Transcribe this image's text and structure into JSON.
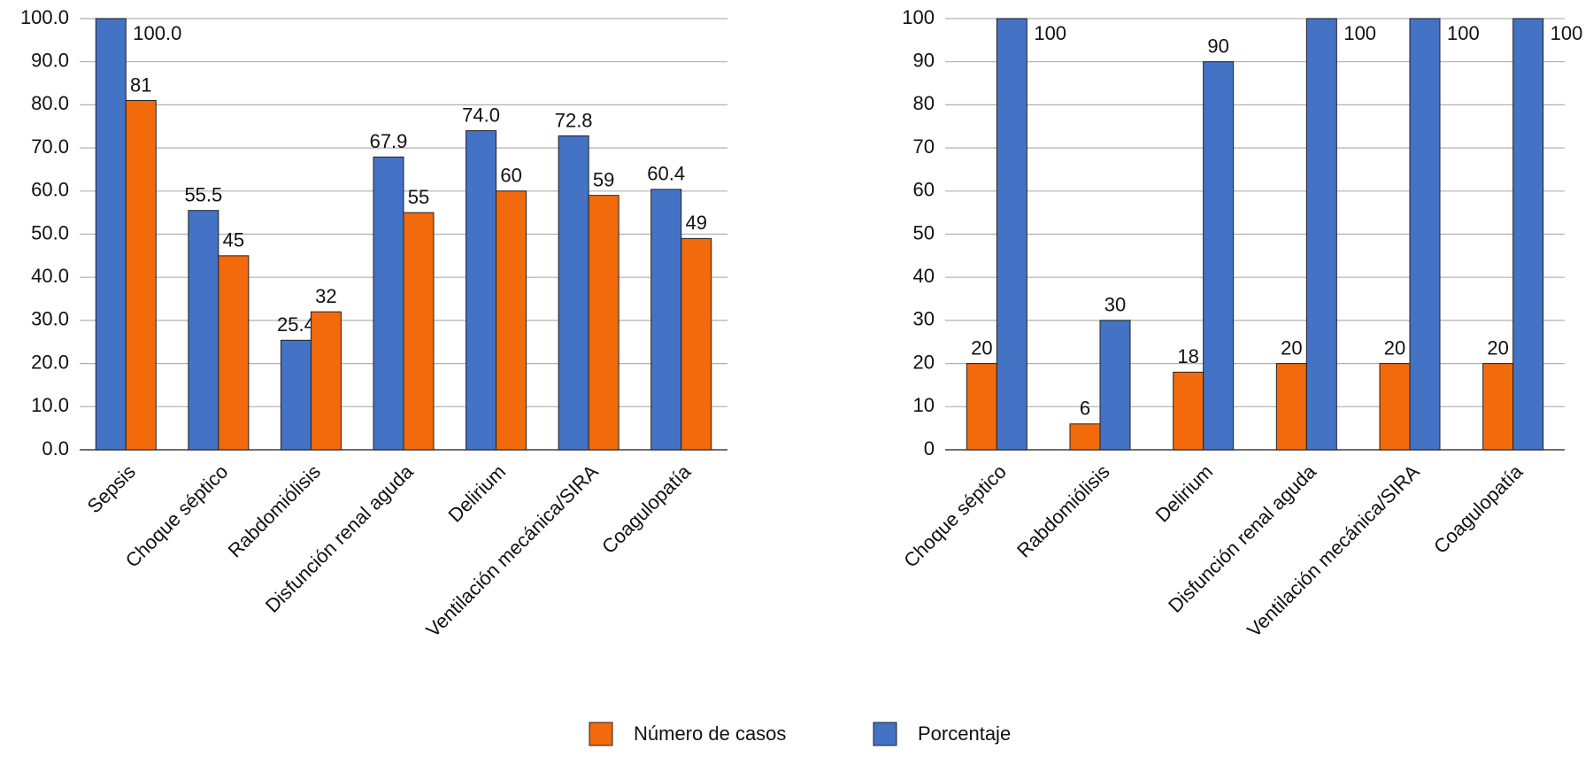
{
  "chart_data": [
    {
      "type": "bar",
      "categories": [
        "Sepsis",
        "Choque séptico",
        "Rabdomiólisis",
        "Disfunción renal aguda",
        "Delirium",
        "Ventilación mecánica/SIRA",
        "Coagulopatía"
      ],
      "series": [
        {
          "name": "Porcentaje",
          "color": "#4472c4",
          "values": [
            100,
            55.5,
            25.4,
            67.9,
            74,
            72.8,
            60.4
          ],
          "value_labels": [
            "100.0",
            "55.5",
            "25.4",
            "67.9",
            "74.0",
            "72.8",
            "60.4"
          ]
        },
        {
          "name": "Número de casos",
          "color": "#f26a0c",
          "values": [
            81,
            45,
            32,
            55,
            60,
            59,
            49
          ]
        }
      ],
      "ylim": [
        0,
        100
      ],
      "yticks": [
        {
          "value": 0,
          "label": "0.0"
        },
        {
          "value": 10,
          "label": "10.0"
        },
        {
          "value": 20,
          "label": "20.0"
        },
        {
          "value": 30,
          "label": "30.0"
        },
        {
          "value": 40,
          "label": "40.0"
        },
        {
          "value": 50,
          "label": "50.0"
        },
        {
          "value": 60,
          "label": "60.0"
        },
        {
          "value": 70,
          "label": "70.0"
        },
        {
          "value": 80,
          "label": "80.0"
        },
        {
          "value": 90,
          "label": "90.0"
        },
        {
          "value": 100,
          "label": "100.0"
        }
      ],
      "grid": true
    },
    {
      "type": "bar",
      "categories": [
        "Choque séptico",
        "Rabdomiólisis",
        "Delirium",
        "Disfunción renal aguda",
        "Ventilación mecánica/SIRA",
        "Coagulopatía"
      ],
      "series": [
        {
          "name": "Número de casos",
          "color": "#f26a0c",
          "values": [
            20,
            6,
            18,
            20,
            20,
            20
          ]
        },
        {
          "name": "Porcentaje",
          "color": "#4472c4",
          "values": [
            100,
            30,
            90,
            100,
            100,
            100
          ]
        }
      ],
      "ylim": [
        0,
        100
      ],
      "yticks": [
        0,
        10,
        20,
        30,
        40,
        50,
        60,
        70,
        80,
        90,
        100
      ],
      "grid": true
    }
  ]
}
